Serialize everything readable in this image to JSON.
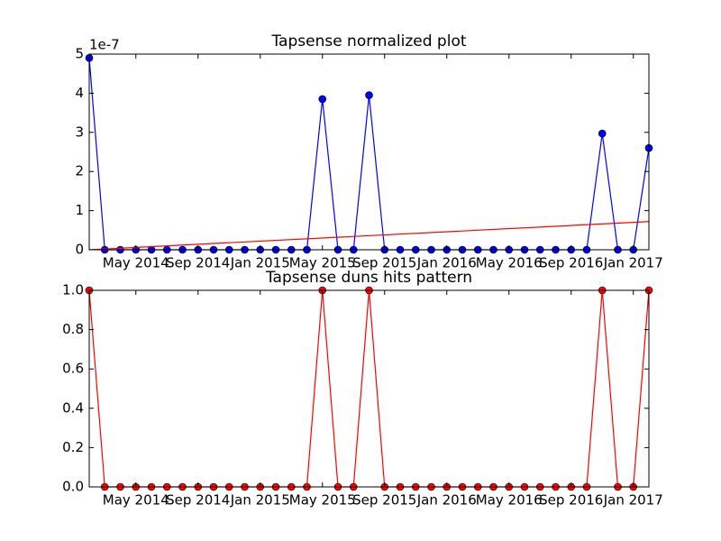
{
  "chart_data": [
    {
      "type": "line",
      "title": "Tapsense normalized plot",
      "offset_label": "1e-7",
      "x": [
        "2014-02",
        "2014-03",
        "2014-04",
        "2014-05",
        "2014-06",
        "2014-07",
        "2014-08",
        "2014-09",
        "2014-10",
        "2014-11",
        "2014-12",
        "2015-01",
        "2015-02",
        "2015-03",
        "2015-04",
        "2015-05",
        "2015-06",
        "2015-07",
        "2015-08",
        "2015-09",
        "2015-10",
        "2015-11",
        "2015-12",
        "2016-01",
        "2016-02",
        "2016-03",
        "2016-04",
        "2016-05",
        "2016-06",
        "2016-07",
        "2016-08",
        "2016-09",
        "2016-10",
        "2016-11",
        "2016-12",
        "2017-01",
        "2017-02"
      ],
      "series": [
        {
          "color": "#0000ff",
          "marker": true,
          "values": [
            4.9,
            0,
            0,
            0,
            0,
            0,
            0,
            0,
            0,
            0,
            0,
            0,
            0,
            0,
            0,
            3.85,
            0,
            0,
            3.95,
            0,
            0,
            0,
            0,
            0,
            0,
            0,
            0,
            0,
            0,
            0,
            0,
            0,
            0,
            2.97,
            0,
            0,
            2.6
          ]
        },
        {
          "color": "#ff0000",
          "marker": false,
          "x": [
            "2014-02",
            "2017-02"
          ],
          "values": [
            0,
            0.72
          ]
        }
      ],
      "xlim": [
        "2014-02",
        "2017-02"
      ],
      "xticks": [
        {
          "value": "2014-05",
          "label": "May 2014"
        },
        {
          "value": "2014-09",
          "label": "Sep 2014"
        },
        {
          "value": "2015-01",
          "label": "Jan 2015"
        },
        {
          "value": "2015-05",
          "label": "May 2015"
        },
        {
          "value": "2015-09",
          "label": "Sep 2015"
        },
        {
          "value": "2016-01",
          "label": "Jan 2016"
        },
        {
          "value": "2016-05",
          "label": "May 2016"
        },
        {
          "value": "2016-09",
          "label": "Sep 2016"
        },
        {
          "value": "2017-01",
          "label": "Jan 2017"
        }
      ],
      "ylim": [
        0,
        5
      ],
      "yticks": [
        0,
        1,
        2,
        3,
        4,
        5
      ]
    },
    {
      "type": "line",
      "title": "Tapsense duns hits pattern",
      "x": [
        "2014-02",
        "2014-03",
        "2014-04",
        "2014-05",
        "2014-06",
        "2014-07",
        "2014-08",
        "2014-09",
        "2014-10",
        "2014-11",
        "2014-12",
        "2015-01",
        "2015-02",
        "2015-03",
        "2015-04",
        "2015-05",
        "2015-06",
        "2015-07",
        "2015-08",
        "2015-09",
        "2015-10",
        "2015-11",
        "2015-12",
        "2016-01",
        "2016-02",
        "2016-03",
        "2016-04",
        "2016-05",
        "2016-06",
        "2016-07",
        "2016-08",
        "2016-09",
        "2016-10",
        "2016-11",
        "2016-12",
        "2017-01",
        "2017-02"
      ],
      "series": [
        {
          "color": "#ff0000",
          "marker": true,
          "values": [
            1,
            0,
            0,
            0,
            0,
            0,
            0,
            0,
            0,
            0,
            0,
            0,
            0,
            0,
            0,
            1,
            0,
            0,
            1,
            0,
            0,
            0,
            0,
            0,
            0,
            0,
            0,
            0,
            0,
            0,
            0,
            0,
            0,
            1,
            0,
            0,
            1
          ]
        }
      ],
      "xlim": [
        "2014-02",
        "2017-02"
      ],
      "xticks": [
        {
          "value": "2014-05",
          "label": "May 2014"
        },
        {
          "value": "2014-09",
          "label": "Sep 2014"
        },
        {
          "value": "2015-01",
          "label": "Jan 2015"
        },
        {
          "value": "2015-05",
          "label": "May 2015"
        },
        {
          "value": "2015-09",
          "label": "Sep 2015"
        },
        {
          "value": "2016-01",
          "label": "Jan 2016"
        },
        {
          "value": "2016-05",
          "label": "May 2016"
        },
        {
          "value": "2016-09",
          "label": "Sep 2016"
        },
        {
          "value": "2017-01",
          "label": "Jan 2017"
        }
      ],
      "ylim": [
        0,
        1
      ],
      "yticks": [
        {
          "value": 0,
          "label": "0.0"
        },
        0.2,
        0.4,
        0.6,
        0.8,
        {
          "value": 1,
          "label": "1.0"
        }
      ]
    }
  ]
}
